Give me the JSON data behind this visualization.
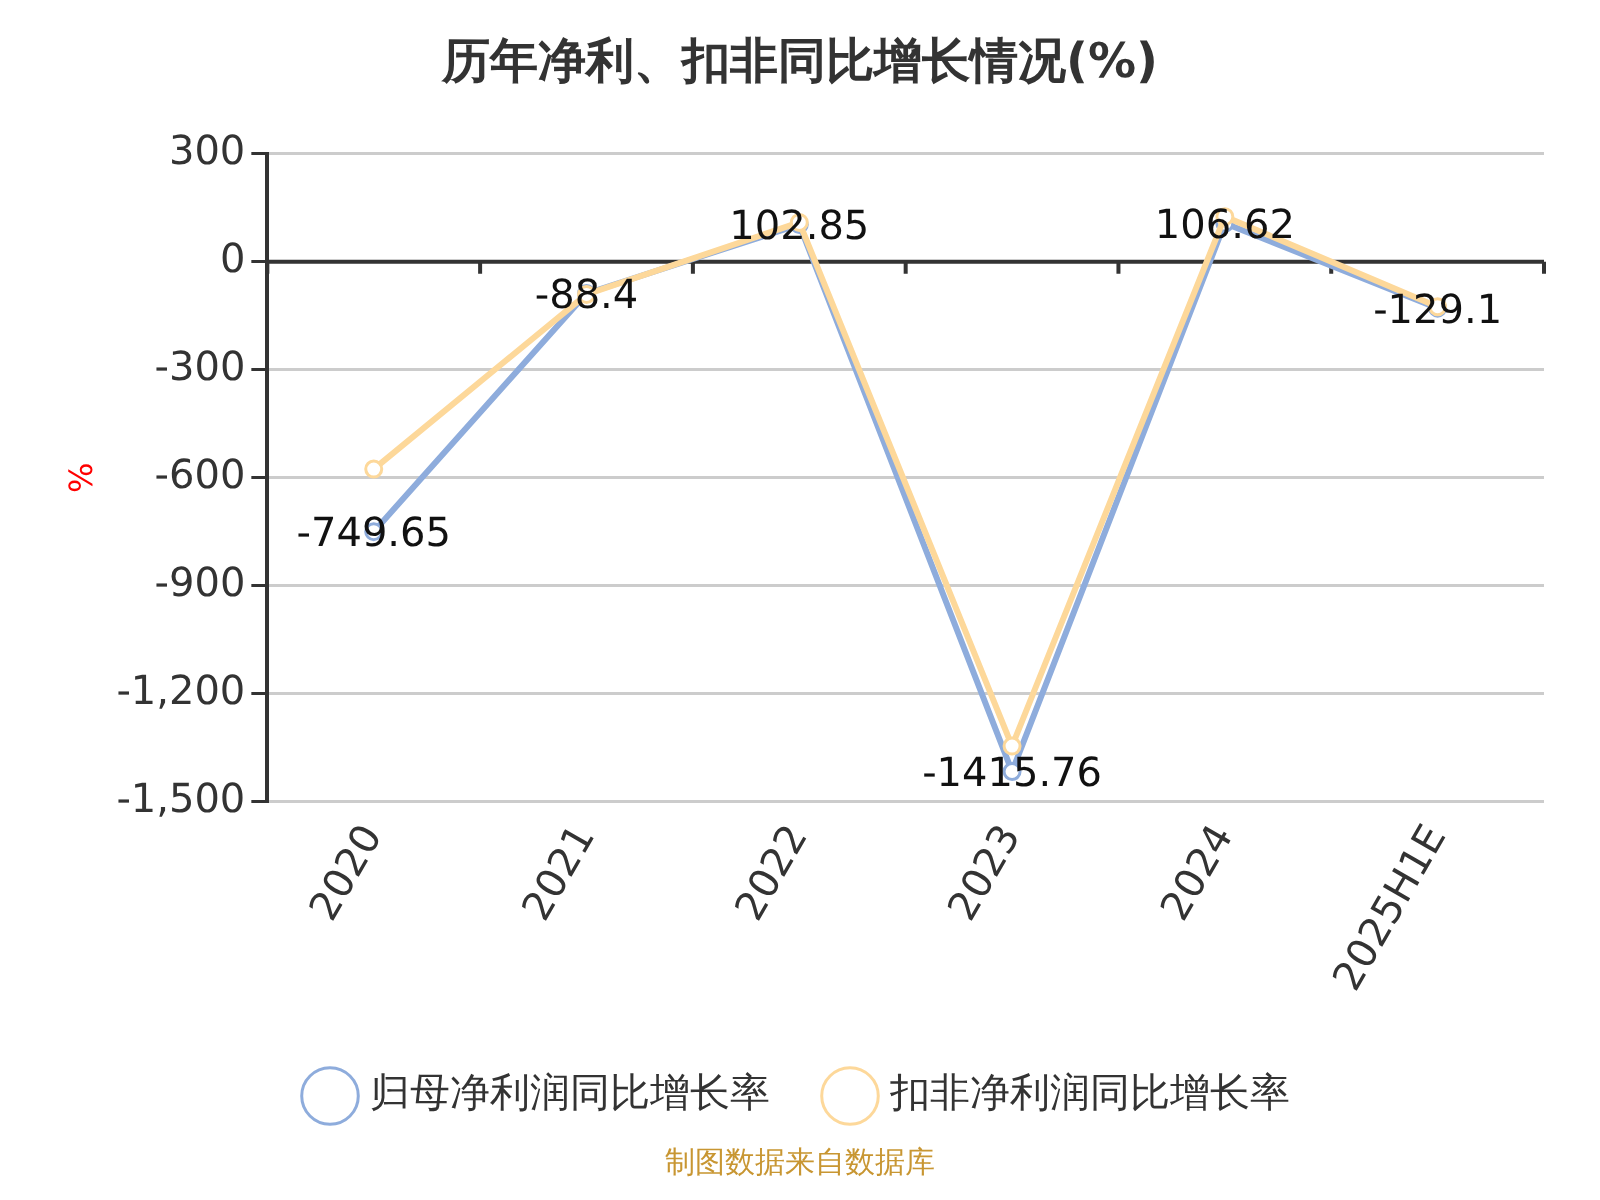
{
  "chart_data": {
    "type": "line",
    "title": "历年净利、扣非同比增长情况(%)",
    "ylabel": "%",
    "categories": [
      "2020",
      "2021",
      "2022",
      "2023",
      "2024",
      "2025H1E"
    ],
    "series": [
      {
        "name": "归母净利润同比增长率",
        "color": "#8eacdc",
        "values": [
          -749.65,
          -88.4,
          102.85,
          -1415.76,
          106.62,
          -129.1
        ],
        "value_labels": [
          "-749.65",
          "-88.4",
          "102.85",
          "-1415.76",
          "106.62",
          "-129.1"
        ]
      },
      {
        "name": "扣非净利润同比增长率",
        "color": "#fdd89a",
        "values": [
          -576,
          -91,
          109,
          -1345,
          125,
          -125
        ]
      }
    ],
    "ylim": [
      -1500,
      300
    ],
    "yticks": [
      {
        "value": 300,
        "label": "300"
      },
      {
        "value": 0,
        "label": "0"
      },
      {
        "value": -300,
        "label": "-300"
      },
      {
        "value": -600,
        "label": "-600"
      },
      {
        "value": -900,
        "label": "-900"
      },
      {
        "value": -1200,
        "label": "-1,200"
      },
      {
        "value": -1500,
        "label": "-1,500"
      }
    ],
    "grid": "y",
    "legend": "bottom",
    "marker": "circle",
    "line_style": "solid",
    "annotations": [
      "制图数据来自数据库"
    ]
  }
}
